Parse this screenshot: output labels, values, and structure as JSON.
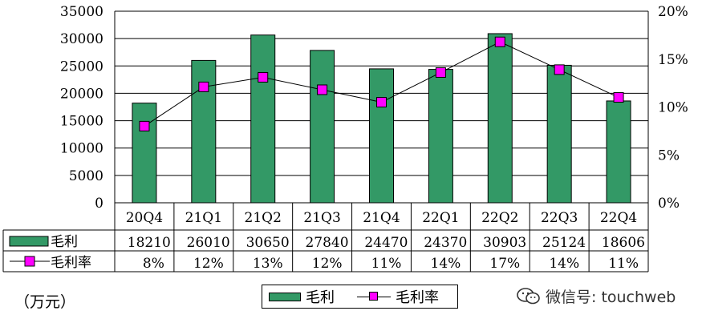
{
  "chart_data": {
    "type": "bar",
    "categories": [
      "20Q4",
      "21Q1",
      "21Q2",
      "21Q3",
      "21Q4",
      "22Q1",
      "22Q2",
      "22Q3",
      "22Q4"
    ],
    "series": [
      {
        "name": "毛利",
        "type": "bar",
        "axis": "left",
        "color": "#339966",
        "values": [
          18210,
          26010,
          30650,
          27840,
          24470,
          24370,
          30903,
          25124,
          18606
        ]
      },
      {
        "name": "毛利率",
        "type": "line",
        "axis": "right",
        "color": "#ff00ff",
        "values": [
          8,
          12,
          13,
          12,
          11,
          14,
          17,
          14,
          11
        ],
        "plotted_values": [
          8.0,
          12.1,
          13.1,
          11.8,
          10.5,
          13.6,
          16.8,
          13.9,
          11.0
        ]
      }
    ],
    "y_left": {
      "ylim": [
        0,
        35000
      ],
      "ticks": [
        "0",
        "5000",
        "10000",
        "15000",
        "20000",
        "25000",
        "30000",
        "35000"
      ]
    },
    "y_right": {
      "ylim": [
        0,
        20
      ],
      "ticks": [
        "0%",
        "5%",
        "10%",
        "15%",
        "20%"
      ]
    },
    "table": {
      "rows": [
        {
          "label": "毛利",
          "cells": [
            "18210",
            "26010",
            "30650",
            "27840",
            "24470",
            "24370",
            "30903",
            "25124",
            "18606"
          ]
        },
        {
          "label": "毛利率",
          "cells": [
            "8%",
            "12%",
            "13%",
            "12%",
            "11%",
            "14%",
            "17%",
            "14%",
            "11%"
          ]
        }
      ]
    },
    "legend": [
      "毛利",
      "毛利率"
    ],
    "legend_position": "bottom-center",
    "grid": true
  },
  "unit_label": "（万元）",
  "watermark": "微信号: touchweb",
  "watermark_icon": "wechat-icon"
}
